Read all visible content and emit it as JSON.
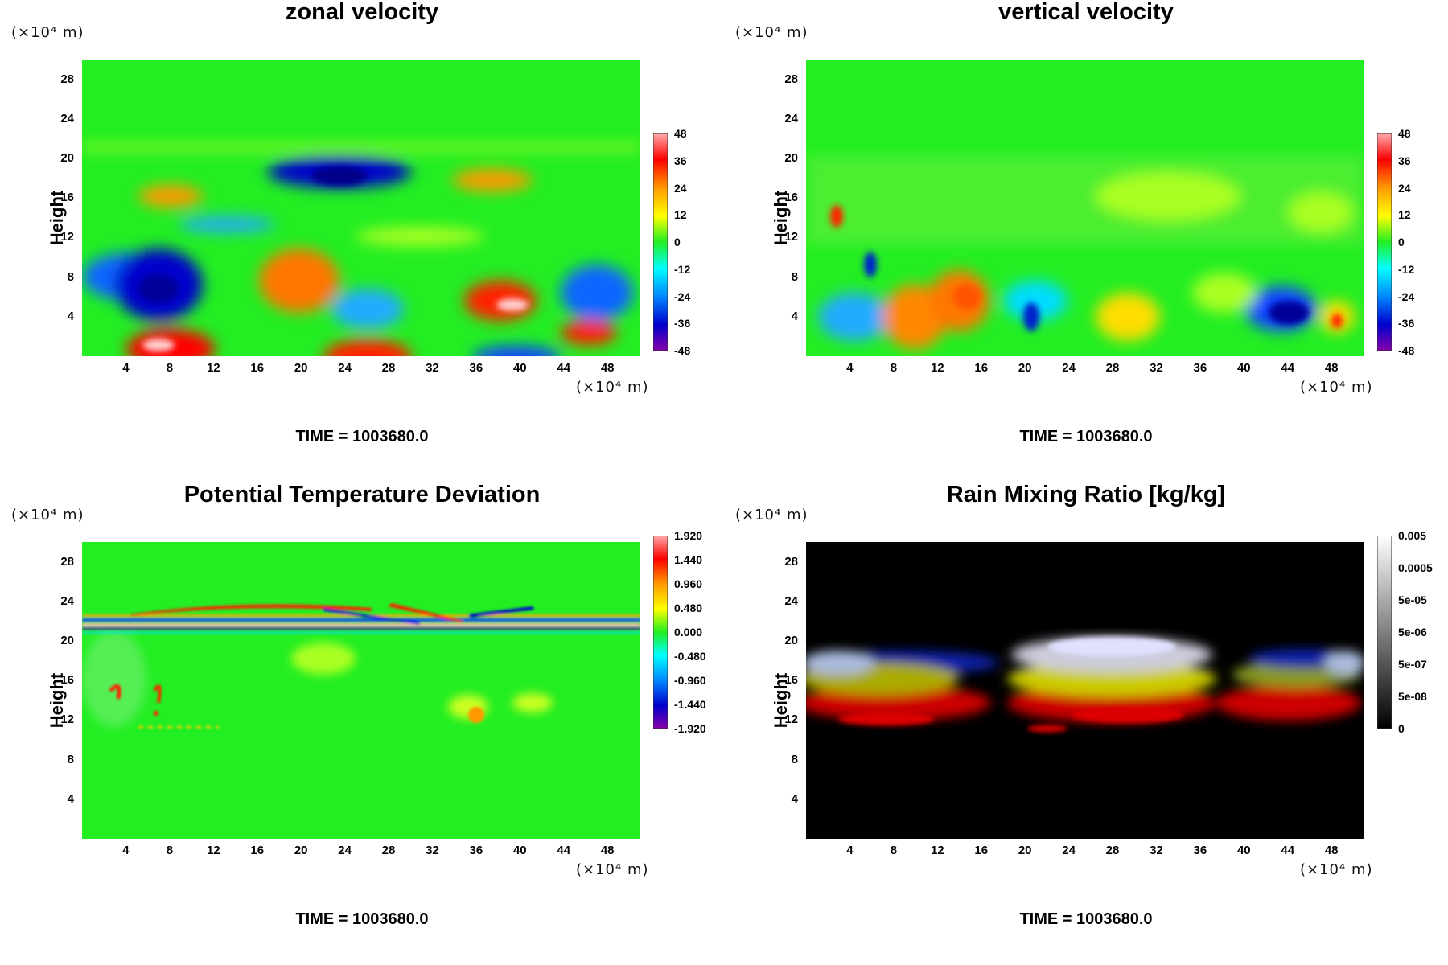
{
  "chart_data": [
    {
      "type": "heatmap",
      "title": "zonal velocity",
      "ylabel": "Height",
      "y_unit": "(×10⁴ m)",
      "x_unit": "(×10⁴ m)",
      "x_ticks": [
        "4",
        "8",
        "12",
        "16",
        "20",
        "24",
        "28",
        "32",
        "36",
        "40",
        "44",
        "48"
      ],
      "y_ticks": [
        "28",
        "24",
        "20",
        "16",
        "12",
        "8",
        "4"
      ],
      "xlim": [
        0,
        51
      ],
      "ylim": [
        0,
        30
      ],
      "colorbar": [
        "48",
        "36",
        "24",
        "12",
        "0",
        "-12",
        "-24",
        "-36",
        "-48"
      ],
      "colorscale": "rainbow",
      "time_label": "TIME = 1003680.0"
    },
    {
      "type": "heatmap",
      "title": "vertical velocity",
      "ylabel": "Height",
      "y_unit": "(×10⁴ m)",
      "x_unit": "(×10⁴ m)",
      "x_ticks": [
        "4",
        "8",
        "12",
        "16",
        "20",
        "24",
        "28",
        "32",
        "36",
        "40",
        "44",
        "48"
      ],
      "y_ticks": [
        "28",
        "24",
        "20",
        "16",
        "12",
        "8",
        "4"
      ],
      "xlim": [
        0,
        51
      ],
      "ylim": [
        0,
        30
      ],
      "colorbar": [
        "48",
        "36",
        "24",
        "12",
        "0",
        "-12",
        "-24",
        "-36",
        "-48"
      ],
      "colorscale": "rainbow",
      "time_label": "TIME = 1003680.0"
    },
    {
      "type": "heatmap",
      "title": "Potential Temperature Deviation",
      "ylabel": "Height",
      "y_unit": "(×10⁴ m)",
      "x_unit": "(×10⁴ m)",
      "x_ticks": [
        "4",
        "8",
        "12",
        "16",
        "20",
        "24",
        "28",
        "32",
        "36",
        "40",
        "44",
        "48"
      ],
      "y_ticks": [
        "28",
        "24",
        "20",
        "16",
        "12",
        "8",
        "4"
      ],
      "xlim": [
        0,
        51
      ],
      "ylim": [
        0,
        30
      ],
      "colorbar": [
        "1.920",
        "1.440",
        "0.960",
        "0.480",
        "0.000",
        "-0.480",
        "-0.960",
        "-1.440",
        "-1.920"
      ],
      "colorscale": "rainbow",
      "time_label": "TIME = 1003680.0"
    },
    {
      "type": "heatmap",
      "title": "Rain Mixing Ratio [kg/kg]",
      "ylabel": "Height",
      "y_unit": "(×10⁴ m)",
      "x_unit": "(×10⁴ m)",
      "x_ticks": [
        "4",
        "8",
        "12",
        "16",
        "20",
        "24",
        "28",
        "32",
        "36",
        "40",
        "44",
        "48"
      ],
      "y_ticks": [
        "28",
        "24",
        "20",
        "16",
        "12",
        "8",
        "4"
      ],
      "xlim": [
        0,
        51
      ],
      "ylim": [
        0,
        30
      ],
      "colorbar": [
        "0.005",
        "0.0005",
        "5e-05",
        "5e-06",
        "5e-07",
        "5e-08",
        "0"
      ],
      "colorscale": "grayscale",
      "time_label": "TIME = 1003680.0"
    }
  ],
  "colors": {
    "background_field": "#22ee22",
    "rain_background": "#000000"
  }
}
